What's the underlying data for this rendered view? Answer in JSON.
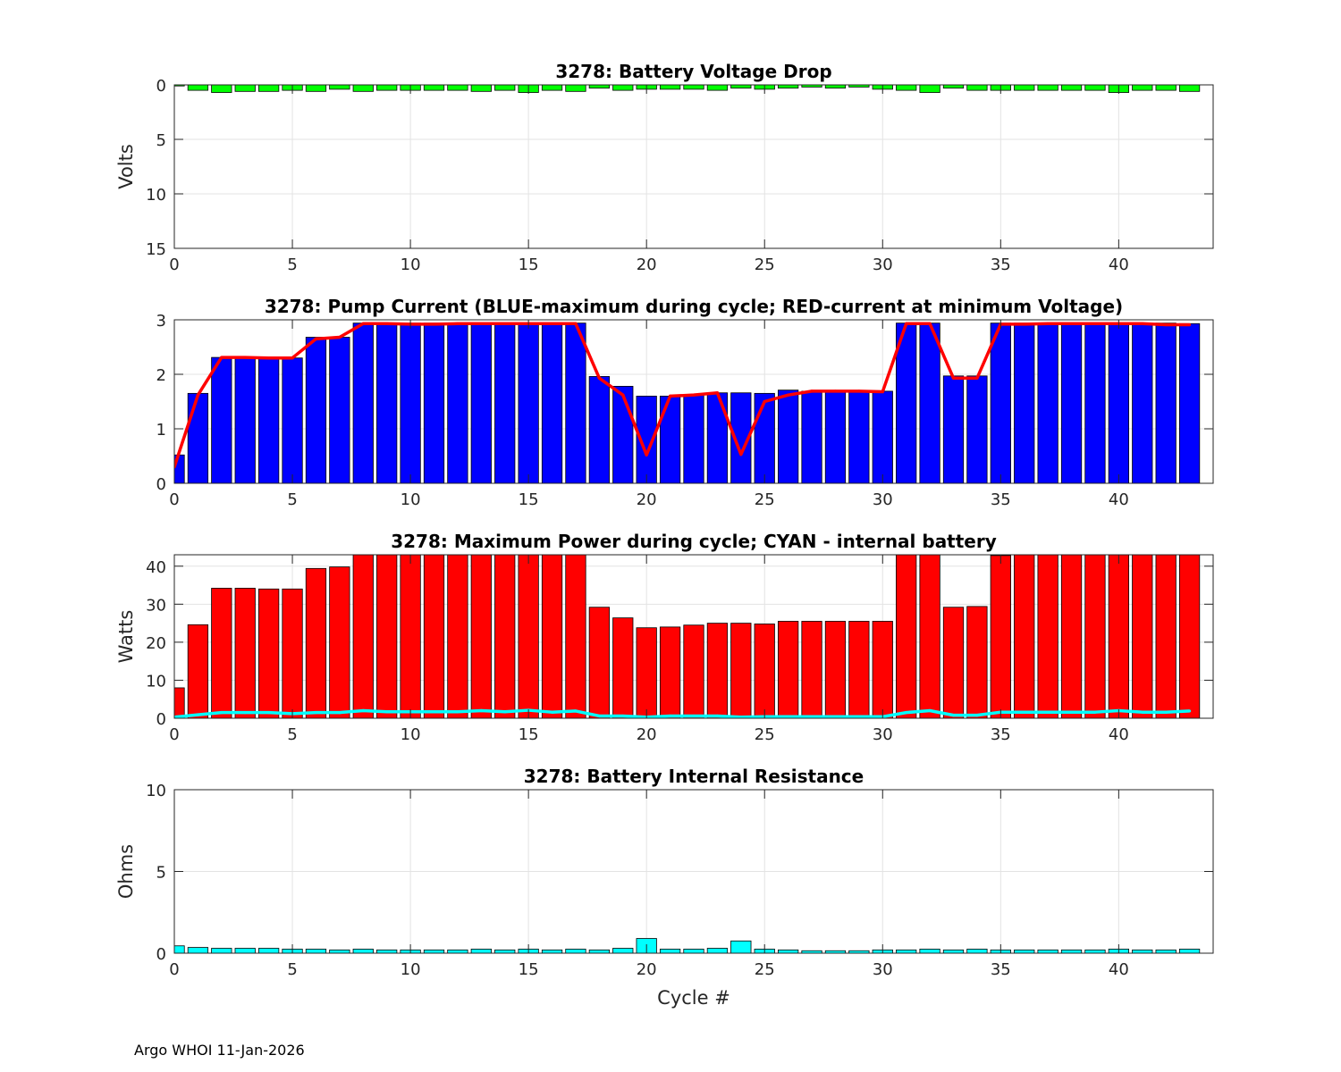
{
  "footer": "Argo WHOI 11-Jan-2026",
  "colors": {
    "green": "#00ff00",
    "blue": "#0000ff",
    "red": "#ff0000",
    "cyan": "#00ffff",
    "grid": "#e3e3e3"
  },
  "chart_data": [
    {
      "type": "bar",
      "title": "3278: Battery Voltage Drop",
      "xlabel": "",
      "ylabel": "Volts",
      "xlim": [
        0,
        44
      ],
      "ylim": [
        0,
        15
      ],
      "y_reversed": true,
      "xticks": [
        0,
        5,
        10,
        15,
        20,
        25,
        30,
        35,
        40
      ],
      "yticks": [
        0,
        5,
        10,
        15
      ],
      "grid": true,
      "series": [
        {
          "color": "#00ff00",
          "x": [
            0,
            1,
            2,
            3,
            4,
            5,
            6,
            7,
            8,
            9,
            10,
            11,
            12,
            13,
            14,
            15,
            16,
            17,
            18,
            19,
            20,
            21,
            22,
            23,
            24,
            25,
            26,
            27,
            28,
            29,
            30,
            31,
            32,
            33,
            34,
            35,
            36,
            37,
            38,
            39,
            40,
            41,
            42,
            43
          ],
          "values": [
            0.1,
            0.5,
            0.7,
            0.6,
            0.6,
            0.5,
            0.6,
            0.4,
            0.6,
            0.5,
            0.5,
            0.5,
            0.5,
            0.6,
            0.5,
            0.7,
            0.5,
            0.6,
            0.3,
            0.5,
            0.4,
            0.4,
            0.4,
            0.5,
            0.3,
            0.4,
            0.3,
            0.2,
            0.3,
            0.2,
            0.4,
            0.5,
            0.7,
            0.3,
            0.5,
            0.5,
            0.5,
            0.5,
            0.5,
            0.5,
            0.7,
            0.5,
            0.5,
            0.6
          ]
        }
      ]
    },
    {
      "type": "bar",
      "title": "3278: Pump Current (BLUE-maximum during cycle; RED-current at minimum Voltage)",
      "xlabel": "",
      "ylabel": "",
      "xlim": [
        0,
        44
      ],
      "ylim": [
        0,
        3
      ],
      "xticks": [
        0,
        5,
        10,
        15,
        20,
        25,
        30,
        35,
        40
      ],
      "yticks": [
        0,
        1,
        2,
        3
      ],
      "grid": true,
      "series": [
        {
          "type": "bar",
          "color": "#0000ff",
          "x": [
            0,
            1,
            2,
            3,
            4,
            5,
            6,
            7,
            8,
            9,
            10,
            11,
            12,
            13,
            14,
            15,
            16,
            17,
            18,
            19,
            20,
            21,
            22,
            23,
            24,
            25,
            26,
            27,
            28,
            29,
            30,
            31,
            32,
            33,
            34,
            35,
            36,
            37,
            38,
            39,
            40,
            41,
            42,
            43
          ],
          "values": [
            0.52,
            1.65,
            2.31,
            2.31,
            2.3,
            2.3,
            2.68,
            2.68,
            2.94,
            2.94,
            2.94,
            2.94,
            2.94,
            2.94,
            2.94,
            2.94,
            2.94,
            2.94,
            1.96,
            1.78,
            1.6,
            1.6,
            1.62,
            1.66,
            1.66,
            1.65,
            1.71,
            1.69,
            1.69,
            1.69,
            1.69,
            2.94,
            2.94,
            1.97,
            1.97,
            2.94,
            2.94,
            2.94,
            2.94,
            2.94,
            2.94,
            2.94,
            2.94,
            2.93
          ]
        },
        {
          "type": "line",
          "color": "#ff0000",
          "x": [
            0,
            1,
            2,
            3,
            4,
            5,
            6,
            7,
            8,
            9,
            10,
            11,
            12,
            13,
            14,
            15,
            16,
            17,
            18,
            19,
            20,
            21,
            22,
            23,
            24,
            25,
            26,
            27,
            28,
            29,
            30,
            31,
            32,
            33,
            34,
            35,
            36,
            37,
            38,
            39,
            40,
            41,
            42,
            43
          ],
          "values": [
            0.3,
            1.62,
            2.31,
            2.31,
            2.3,
            2.3,
            2.65,
            2.68,
            2.93,
            2.93,
            2.92,
            2.92,
            2.93,
            2.93,
            2.93,
            2.93,
            2.93,
            2.93,
            1.93,
            1.62,
            0.52,
            1.6,
            1.62,
            1.66,
            0.53,
            1.5,
            1.62,
            1.69,
            1.69,
            1.69,
            1.68,
            2.93,
            2.93,
            1.93,
            1.93,
            2.92,
            2.92,
            2.93,
            2.93,
            2.93,
            2.93,
            2.93,
            2.91,
            2.91
          ]
        }
      ]
    },
    {
      "type": "bar",
      "title": "3278: Maximum Power during cycle; CYAN - internal battery",
      "xlabel": "",
      "ylabel": "Watts",
      "xlim": [
        0,
        44
      ],
      "ylim": [
        0,
        43
      ],
      "xticks": [
        0,
        5,
        10,
        15,
        20,
        25,
        30,
        35,
        40
      ],
      "yticks": [
        0,
        10,
        20,
        30,
        40
      ],
      "grid": true,
      "series": [
        {
          "type": "bar",
          "color": "#ff0000",
          "x": [
            0,
            1,
            2,
            3,
            4,
            5,
            6,
            7,
            8,
            9,
            10,
            11,
            12,
            13,
            14,
            15,
            16,
            17,
            18,
            19,
            20,
            21,
            22,
            23,
            24,
            25,
            26,
            27,
            28,
            29,
            30,
            31,
            32,
            33,
            34,
            35,
            36,
            37,
            38,
            39,
            40,
            41,
            42,
            43
          ],
          "values": [
            8,
            24.6,
            34.2,
            34.2,
            34,
            34,
            39.4,
            39.8,
            43,
            43,
            43,
            43,
            43,
            43,
            43,
            43,
            43,
            43,
            29.2,
            26.4,
            23.8,
            24,
            24.5,
            25,
            25,
            24.8,
            25.5,
            25.5,
            25.5,
            25.5,
            25.5,
            43,
            43,
            29.2,
            29.4,
            42.8,
            43,
            43,
            43,
            43,
            43,
            43,
            43,
            43
          ]
        },
        {
          "type": "line",
          "color": "#00ffff",
          "x": [
            0,
            1,
            2,
            3,
            4,
            5,
            6,
            7,
            8,
            9,
            10,
            11,
            12,
            13,
            14,
            15,
            16,
            17,
            18,
            19,
            20,
            21,
            22,
            23,
            24,
            25,
            26,
            27,
            28,
            29,
            30,
            31,
            32,
            33,
            34,
            35,
            36,
            37,
            38,
            39,
            40,
            41,
            42,
            43
          ],
          "values": [
            0.3,
            0.9,
            1.5,
            1.5,
            1.5,
            1.2,
            1.5,
            1.5,
            2,
            1.7,
            1.7,
            1.7,
            1.7,
            2,
            1.7,
            2.1,
            1.6,
            1.9,
            0.6,
            0.6,
            0.3,
            0.6,
            0.6,
            0.6,
            0.3,
            0.4,
            0.4,
            0.4,
            0.4,
            0.4,
            0.4,
            1.5,
            2,
            0.8,
            0.8,
            1.6,
            1.6,
            1.6,
            1.6,
            1.6,
            2,
            1.6,
            1.6,
            1.9
          ]
        }
      ]
    },
    {
      "type": "bar",
      "title": "3278: Battery Internal Resistance",
      "xlabel": "Cycle #",
      "ylabel": "Ohms",
      "xlim": [
        0,
        44
      ],
      "ylim": [
        0,
        10
      ],
      "xticks": [
        0,
        5,
        10,
        15,
        20,
        25,
        30,
        35,
        40
      ],
      "yticks": [
        0,
        5,
        10
      ],
      "grid": true,
      "series": [
        {
          "color": "#00ffff",
          "x": [
            0,
            1,
            2,
            3,
            4,
            5,
            6,
            7,
            8,
            9,
            10,
            11,
            12,
            13,
            14,
            15,
            16,
            17,
            18,
            19,
            20,
            21,
            22,
            23,
            24,
            25,
            26,
            27,
            28,
            29,
            30,
            31,
            32,
            33,
            34,
            35,
            36,
            37,
            38,
            39,
            40,
            41,
            42,
            43
          ],
          "values": [
            0.45,
            0.35,
            0.3,
            0.3,
            0.3,
            0.25,
            0.25,
            0.2,
            0.25,
            0.2,
            0.2,
            0.2,
            0.2,
            0.25,
            0.2,
            0.25,
            0.2,
            0.25,
            0.2,
            0.3,
            0.9,
            0.25,
            0.25,
            0.3,
            0.75,
            0.25,
            0.2,
            0.15,
            0.15,
            0.15,
            0.2,
            0.2,
            0.25,
            0.2,
            0.25,
            0.2,
            0.2,
            0.2,
            0.2,
            0.2,
            0.25,
            0.2,
            0.2,
            0.25
          ]
        }
      ]
    }
  ]
}
